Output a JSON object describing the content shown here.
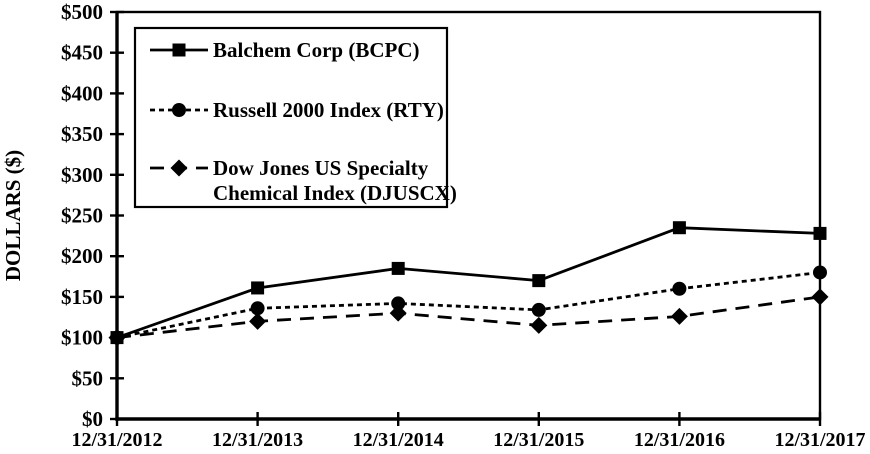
{
  "chart": {
    "ylabel": "DOLLARS ($)",
    "colors": {
      "fg": "#000000",
      "bg": "#ffffff"
    },
    "legend": [
      {
        "lines": [
          "Balchem Corp (BCPC)"
        ],
        "marker": "square",
        "dash": "solid"
      },
      {
        "lines": [
          "Russell 2000 Index (RTY)"
        ],
        "marker": "circle",
        "dash": "dotted"
      },
      {
        "lines": [
          "Dow Jones US Specialty",
          "Chemical Index (DJUSCX)"
        ],
        "marker": "diamond",
        "dash": "dashed"
      }
    ]
  },
  "chart_data": {
    "type": "line",
    "title": "",
    "xlabel": "",
    "ylabel": "DOLLARS ($)",
    "categories": [
      "12/31/2012",
      "12/31/2013",
      "12/31/2014",
      "12/31/2015",
      "12/31/2016",
      "12/31/2017"
    ],
    "series": [
      {
        "name": "Balchem Corp (BCPC)",
        "marker": "square",
        "line_style": "solid",
        "values": [
          100,
          161,
          185,
          170,
          235,
          228
        ]
      },
      {
        "name": "Russell 2000 Index (RTY)",
        "marker": "circle",
        "line_style": "dotted",
        "values": [
          100,
          136,
          142,
          134,
          160,
          180
        ]
      },
      {
        "name": "Dow Jones US Specialty Chemical Index (DJUSCX)",
        "marker": "diamond",
        "line_style": "dashed",
        "values": [
          100,
          120,
          130,
          115,
          126,
          150
        ]
      }
    ],
    "ylim": [
      0,
      500
    ],
    "ytick_step": 50,
    "ytick_labels": [
      "$0",
      "$50",
      "$100",
      "$150",
      "$200",
      "$250",
      "$300",
      "$350",
      "$400",
      "$450",
      "$500"
    ],
    "grid": false,
    "legend_position": "top-left-inside"
  }
}
